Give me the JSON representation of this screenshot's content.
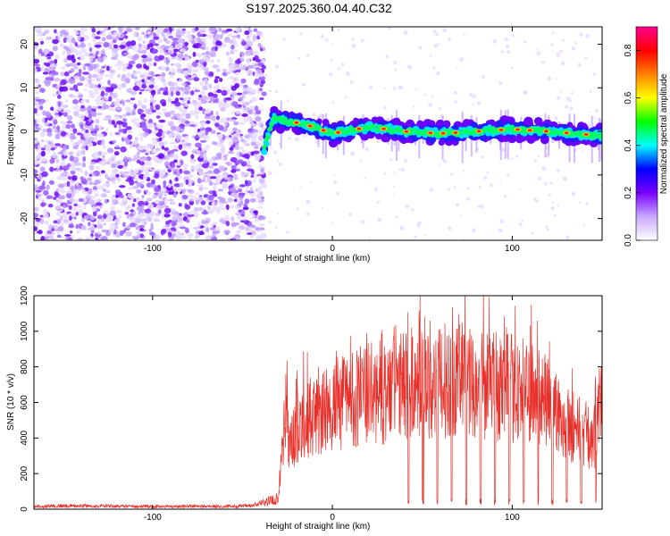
{
  "title": "S197.2025.360.04.40.C32",
  "chart_data": [
    {
      "type": "heatmap",
      "xlabel": "Height of straight line (km)",
      "ylabel": "Frequency (Hz)",
      "xlim": [
        -166,
        150
      ],
      "ylim": [
        -25,
        24
      ],
      "x_ticks": [
        -100,
        0,
        100
      ],
      "y_ticks": [
        -20,
        -10,
        0,
        10,
        20
      ],
      "colorbar": {
        "label": "Normalized spectral amplitude",
        "range": [
          0,
          0.9
        ],
        "ticks": [
          0,
          0.2,
          0.4,
          0.6,
          0.8
        ],
        "colors": [
          "#ffffff",
          "#c9a8ff",
          "#7a00ff",
          "#0000ff",
          "#00ffff",
          "#00ff00",
          "#ffff00",
          "#ff8000",
          "#ff0000",
          "#ff0090"
        ]
      },
      "signal_onset_km": -40,
      "signal_track_hz": [
        {
          "x": -38,
          "y": -4
        },
        {
          "x": -33,
          "y": 3
        },
        {
          "x": -20,
          "y": 2
        },
        {
          "x": -10,
          "y": 1
        },
        {
          "x": 0,
          "y": -0.5
        },
        {
          "x": 20,
          "y": 1
        },
        {
          "x": 40,
          "y": 0
        },
        {
          "x": 60,
          "y": -0.5
        },
        {
          "x": 80,
          "y": 0
        },
        {
          "x": 100,
          "y": 0.5
        },
        {
          "x": 120,
          "y": 0
        },
        {
          "x": 150,
          "y": -1
        }
      ]
    },
    {
      "type": "line",
      "xlabel": "Height of straight line (km)",
      "ylabel": "SNR (10 * v/v)",
      "xlim": [
        -166,
        150
      ],
      "ylim": [
        0,
        1200
      ],
      "x_ticks": [
        -100,
        0,
        100
      ],
      "y_ticks": [
        0,
        200,
        400,
        600,
        800,
        1000,
        1200
      ],
      "color": "#e8302a",
      "series": [
        {
          "x": [
            -166,
            -150,
            -120,
            -100,
            -80,
            -60,
            -45,
            -30,
            -26,
            -24,
            -20,
            -15,
            -10,
            -5,
            0,
            10,
            20,
            30,
            40,
            50,
            60,
            70,
            80,
            90,
            100,
            110,
            120,
            130,
            140,
            145,
            150
          ],
          "y": [
            20,
            25,
            22,
            20,
            22,
            20,
            25,
            80,
            700,
            400,
            550,
            650,
            600,
            650,
            700,
            760,
            780,
            800,
            850,
            860,
            870,
            900,
            860,
            840,
            820,
            800,
            720,
            600,
            520,
            460,
            700
          ]
        }
      ]
    }
  ]
}
